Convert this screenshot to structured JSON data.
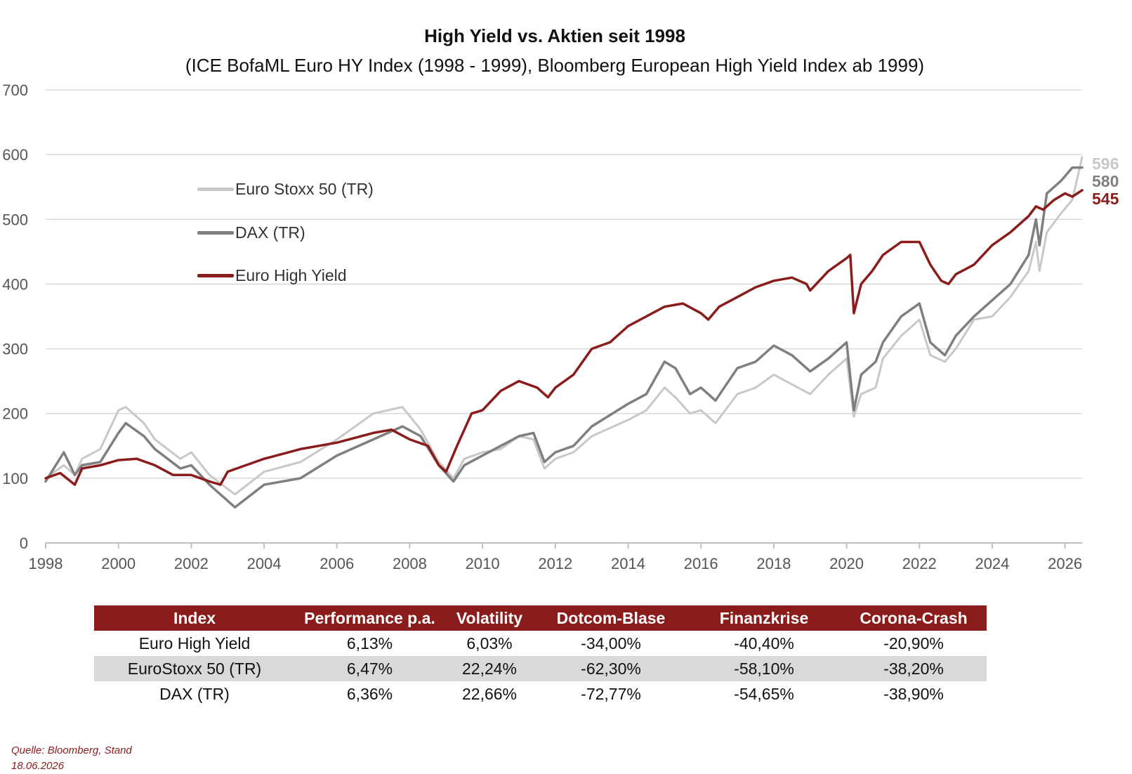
{
  "title": "High Yield vs. Aktien seit 1998",
  "subtitle": "(ICE BofaML Euro HY Index (1998 - 1999), Bloomberg European High Yield Index ab 1999)",
  "colors": {
    "stoxx": "#c8c8c8",
    "dax": "#7f7f7f",
    "hy": "#8b1c1c",
    "grid": "#d9d9d9",
    "header": "#8b1c1c"
  },
  "chart_data": {
    "type": "line",
    "title": "High Yield vs. Aktien seit 1998",
    "subtitle": "(ICE BofaML Euro HY Index (1998 - 1999), Bloomberg European High Yield Index ab 1999)",
    "xlabel": "",
    "ylabel": "",
    "xlim": [
      1998.0,
      2026.47
    ],
    "ylim": [
      0,
      700
    ],
    "x_ticks": [
      1998,
      2000,
      2002,
      2004,
      2006,
      2008,
      2010,
      2012,
      2014,
      2016,
      2018,
      2020,
      2022,
      2024,
      2026
    ],
    "y_ticks": [
      0,
      100,
      200,
      300,
      400,
      500,
      600,
      700
    ],
    "grid": true,
    "legend_position": "top-left",
    "end_labels": [
      "596",
      "580",
      "545"
    ],
    "series": [
      {
        "name": "Euro Stoxx 50 (TR)",
        "color": "#c8c8c8",
        "x": [
          1998.0,
          1998.5,
          1998.8,
          1999.0,
          1999.5,
          2000.0,
          2000.2,
          2000.7,
          2001.0,
          2001.7,
          2002.0,
          2002.5,
          2003.2,
          2004.0,
          2005.0,
          2006.0,
          2007.0,
          2007.8,
          2008.3,
          2008.8,
          2009.2,
          2009.5,
          2010.0,
          2010.5,
          2011.0,
          2011.4,
          2011.7,
          2012.0,
          2012.5,
          2013.0,
          2014.0,
          2014.5,
          2015.0,
          2015.3,
          2015.7,
          2016.0,
          2016.4,
          2017.0,
          2017.5,
          2018.0,
          2018.5,
          2019.0,
          2019.5,
          2020.0,
          2020.2,
          2020.4,
          2020.8,
          2021.0,
          2021.5,
          2022.0,
          2022.3,
          2022.7,
          2023.0,
          2023.5,
          2024.0,
          2024.5,
          2025.0,
          2025.2,
          2025.3,
          2025.5,
          2025.9,
          2026.2,
          2026.47
        ],
        "values": [
          100,
          120,
          105,
          130,
          145,
          205,
          210,
          185,
          160,
          130,
          140,
          105,
          75,
          110,
          125,
          160,
          200,
          210,
          175,
          125,
          100,
          130,
          140,
          145,
          165,
          160,
          115,
          130,
          140,
          165,
          190,
          205,
          240,
          225,
          200,
          205,
          185,
          230,
          240,
          260,
          245,
          230,
          260,
          285,
          195,
          230,
          240,
          285,
          320,
          345,
          290,
          280,
          300,
          345,
          350,
          380,
          420,
          465,
          420,
          480,
          510,
          530,
          596
        ]
      },
      {
        "name": "DAX (TR)",
        "color": "#7f7f7f",
        "x": [
          1998.0,
          1998.5,
          1998.8,
          1999.0,
          1999.5,
          2000.0,
          2000.2,
          2000.7,
          2001.0,
          2001.7,
          2002.0,
          2002.5,
          2003.2,
          2004.0,
          2005.0,
          2006.0,
          2007.0,
          2007.8,
          2008.3,
          2008.8,
          2009.2,
          2009.5,
          2010.0,
          2010.5,
          2011.0,
          2011.4,
          2011.7,
          2012.0,
          2012.5,
          2013.0,
          2014.0,
          2014.5,
          2015.0,
          2015.3,
          2015.7,
          2016.0,
          2016.4,
          2017.0,
          2017.5,
          2018.0,
          2018.5,
          2019.0,
          2019.5,
          2020.0,
          2020.2,
          2020.4,
          2020.8,
          2021.0,
          2021.5,
          2022.0,
          2022.3,
          2022.7,
          2023.0,
          2023.5,
          2024.0,
          2024.5,
          2025.0,
          2025.2,
          2025.3,
          2025.5,
          2025.9,
          2026.2,
          2026.47
        ],
        "values": [
          95,
          140,
          105,
          120,
          125,
          170,
          185,
          165,
          145,
          115,
          120,
          90,
          55,
          90,
          100,
          135,
          160,
          180,
          165,
          120,
          95,
          120,
          135,
          150,
          165,
          170,
          125,
          140,
          150,
          180,
          215,
          230,
          280,
          270,
          230,
          240,
          220,
          270,
          280,
          305,
          290,
          265,
          285,
          310,
          205,
          260,
          280,
          310,
          350,
          370,
          310,
          290,
          320,
          350,
          375,
          400,
          445,
          500,
          460,
          540,
          560,
          580,
          580
        ]
      },
      {
        "name": "Euro High Yield",
        "color": "#8b1c1c",
        "x": [
          1998.0,
          1998.4,
          1998.8,
          1999.0,
          1999.5,
          2000.0,
          2000.5,
          2001.0,
          2001.5,
          2002.0,
          2002.5,
          2002.8,
          2003.0,
          2003.5,
          2004.0,
          2005.0,
          2006.0,
          2007.0,
          2007.5,
          2008.0,
          2008.5,
          2008.8,
          2009.0,
          2009.3,
          2009.7,
          2010.0,
          2010.5,
          2011.0,
          2011.5,
          2011.8,
          2012.0,
          2012.5,
          2013.0,
          2013.5,
          2014.0,
          2014.5,
          2015.0,
          2015.5,
          2016.0,
          2016.2,
          2016.5,
          2017.0,
          2017.5,
          2018.0,
          2018.5,
          2018.9,
          2019.0,
          2019.5,
          2020.0,
          2020.1,
          2020.2,
          2020.4,
          2020.7,
          2021.0,
          2021.5,
          2022.0,
          2022.3,
          2022.6,
          2022.8,
          2023.0,
          2023.5,
          2024.0,
          2024.5,
          2025.0,
          2025.2,
          2025.4,
          2025.7,
          2026.0,
          2026.2,
          2026.47
        ],
        "values": [
          100,
          108,
          90,
          115,
          120,
          128,
          130,
          120,
          105,
          105,
          95,
          90,
          110,
          120,
          130,
          145,
          155,
          170,
          175,
          160,
          150,
          120,
          110,
          150,
          200,
          205,
          235,
          250,
          240,
          225,
          240,
          260,
          300,
          310,
          335,
          350,
          365,
          370,
          355,
          345,
          365,
          380,
          395,
          405,
          410,
          400,
          390,
          420,
          440,
          445,
          355,
          400,
          420,
          445,
          465,
          465,
          430,
          405,
          400,
          415,
          430,
          460,
          480,
          505,
          520,
          515,
          530,
          540,
          535,
          545
        ]
      }
    ]
  },
  "legend": [
    {
      "label": "Euro Stoxx 50 (TR)",
      "color": "#c8c8c8"
    },
    {
      "label": "DAX (TR)",
      "color": "#7f7f7f"
    },
    {
      "label": "Euro High Yield",
      "color": "#8b1c1c"
    }
  ],
  "end_labels": [
    {
      "text": "596",
      "color": "#c8c8c8"
    },
    {
      "text": "580",
      "color": "#7f7f7f"
    },
    {
      "text": "545",
      "color": "#8b1c1c"
    }
  ],
  "table": {
    "headers": [
      "Index",
      "Performance p.a.",
      "Volatility",
      "Dotcom-Blase",
      "Finanzkrise",
      "Corona-Crash"
    ],
    "rows": [
      [
        "Euro High Yield",
        "6,13%",
        "6,03%",
        "-34,00%",
        "-40,40%",
        "-20,90%"
      ],
      [
        "EuroStoxx 50 (TR)",
        "6,47%",
        "22,24%",
        "-62,30%",
        "-58,10%",
        "-38,20%"
      ],
      [
        "DAX (TR)",
        "6,36%",
        "22,66%",
        "-72,77%",
        "-54,65%",
        "-38,90%"
      ]
    ]
  },
  "source": {
    "line1": "Quelle: Bloomberg, Stand",
    "line2": "18.06.2026"
  }
}
